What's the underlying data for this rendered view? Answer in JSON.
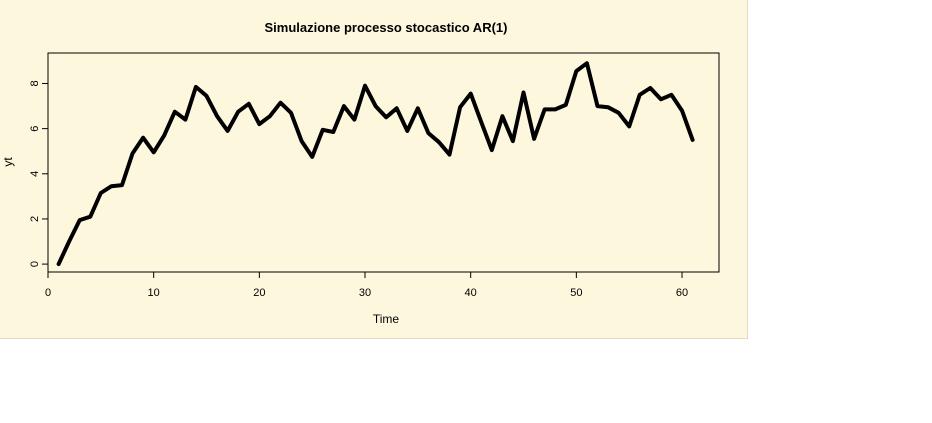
{
  "chart_data": {
    "type": "line",
    "title": "Simulazione processo stocastico AR(1)",
    "xlabel": "Time",
    "ylabel": "yt",
    "xlim": [
      0,
      63.5
    ],
    "ylim": [
      -0.35,
      9.35
    ],
    "x_ticks": [
      0,
      10,
      20,
      30,
      40,
      50,
      60
    ],
    "y_ticks": [
      0,
      2,
      4,
      6,
      8
    ],
    "grid": false,
    "legend": "none",
    "line_color": "#000000",
    "x": [
      1,
      2,
      3,
      4,
      5,
      6,
      7,
      8,
      9,
      10,
      11,
      12,
      13,
      14,
      15,
      16,
      17,
      18,
      19,
      20,
      21,
      22,
      23,
      24,
      25,
      26,
      27,
      28,
      29,
      30,
      31,
      32,
      33,
      34,
      35,
      36,
      37,
      38,
      39,
      40,
      41,
      42,
      43,
      44,
      45,
      46,
      47,
      48,
      49,
      50,
      51,
      52,
      53,
      54,
      55,
      56,
      57,
      58,
      59,
      60,
      61
    ],
    "y": [
      0,
      1.0,
      1.95,
      2.1,
      3.15,
      3.45,
      3.5,
      4.9,
      5.6,
      4.95,
      5.7,
      6.75,
      6.4,
      7.85,
      7.45,
      6.55,
      5.9,
      6.75,
      7.1,
      6.2,
      6.55,
      7.15,
      6.7,
      5.45,
      4.75,
      5.95,
      5.85,
      7.0,
      6.4,
      7.9,
      7.0,
      6.5,
      6.9,
      5.9,
      6.9,
      5.8,
      5.4,
      4.85,
      6.95,
      7.55,
      6.3,
      5.05,
      6.55,
      5.45,
      7.6,
      5.55,
      6.85,
      6.85,
      7.05,
      8.55,
      8.9,
      7.0,
      6.95,
      6.7,
      6.1,
      7.5,
      7.8,
      7.3,
      7.5,
      6.8,
      5.5
    ]
  }
}
